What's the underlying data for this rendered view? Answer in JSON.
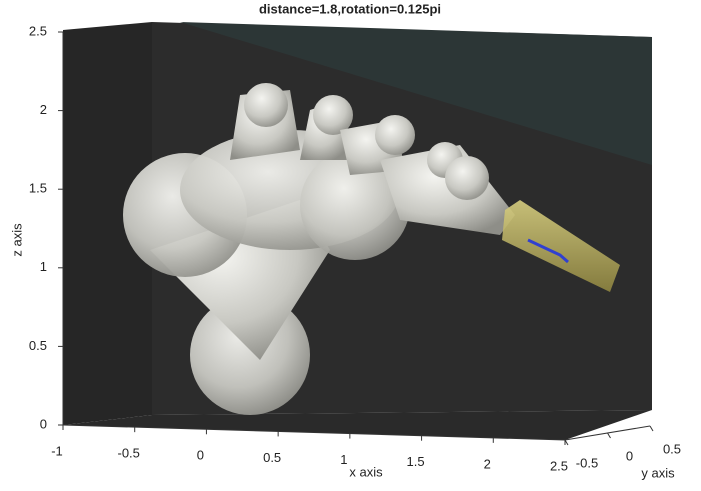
{
  "chart_data": {
    "type": "3d-scene",
    "title": "distance=1.8,rotation=0.125pi",
    "xlabel": "x axis",
    "ylabel": "y axis",
    "zlabel": "z axis",
    "xlim": [
      -1,
      2.5
    ],
    "ylim": [
      -0.5,
      0.5
    ],
    "zlim": [
      0,
      2.5
    ],
    "xticks": [
      -1,
      -0.5,
      0,
      0.5,
      1,
      1.5,
      2,
      2.5
    ],
    "yticks": [
      -0.5,
      0,
      0.5
    ],
    "zticks": [
      0,
      0.5,
      1,
      1.5,
      2,
      2.5
    ]
  }
}
